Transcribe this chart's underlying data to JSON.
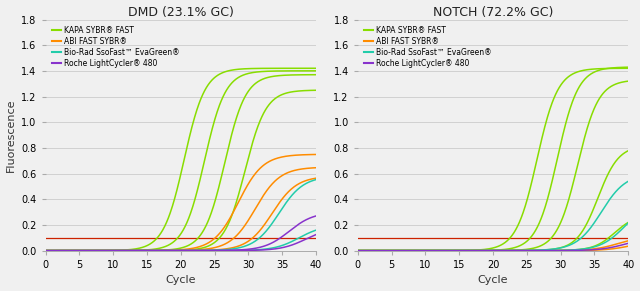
{
  "title_left": "DMD (23.1% GC)",
  "title_right": "NOTCH (72.2% GC)",
  "xlabel": "Cycle",
  "ylabel": "Fluorescence",
  "ylim": [
    0,
    1.8
  ],
  "xlim": [
    0,
    40
  ],
  "yticks": [
    0.0,
    0.2,
    0.4,
    0.6,
    0.8,
    1.0,
    1.2,
    1.4,
    1.6,
    1.8
  ],
  "xticks": [
    0,
    5,
    10,
    15,
    20,
    25,
    30,
    35,
    40
  ],
  "colors": {
    "kapa": "#88DD00",
    "abi": "#FF8C00",
    "biorad": "#22CCAA",
    "roche": "#8833CC",
    "baseline": "#CC2200",
    "black": "#111111"
  },
  "legend_labels": [
    "KAPA SYBR® FAST",
    "ABI FAST SYBR®",
    "Bio-Rad SsoFast™ EvaGreen®",
    "Roche LightCycler® 480"
  ],
  "bg_color": "#f0f0f0",
  "dmd": {
    "kapa_mids": [
      20.5,
      23.5,
      26.5,
      29.5
    ],
    "kapa_tops": [
      1.42,
      1.4,
      1.37,
      1.25
    ],
    "kapa_steep": [
      0.65,
      0.65,
      0.65,
      0.65
    ],
    "abi_mids": [
      28.5,
      31.0,
      33.5
    ],
    "abi_tops": [
      0.75,
      0.65,
      0.58
    ],
    "abi_steep": [
      0.55,
      0.55,
      0.55
    ],
    "biorad_mids": [
      34.5,
      37.5
    ],
    "biorad_tops": [
      0.58,
      0.2
    ],
    "biorad_steep": [
      0.55,
      0.55
    ],
    "roche_mids": [
      36.0,
      38.5
    ],
    "roche_tops": [
      0.3,
      0.18
    ],
    "roche_steep": [
      0.55,
      0.55
    ]
  },
  "notch": {
    "kapa_mids": [
      26.5,
      29.5,
      32.5,
      35.5,
      38.0
    ],
    "kapa_tops": [
      1.42,
      1.43,
      1.33,
      0.82,
      0.28
    ],
    "kapa_steep": [
      0.65,
      0.65,
      0.65,
      0.65,
      0.65
    ],
    "abi_mids": [
      38.5,
      40.5
    ],
    "abi_tops": [
      0.11,
      0.08
    ],
    "abi_steep": [
      0.55,
      0.55
    ],
    "biorad_mids": [
      36.0,
      39.5
    ],
    "biorad_tops": [
      0.6,
      0.38
    ],
    "biorad_steep": [
      0.55,
      0.55
    ],
    "roche_mids": [
      39.5
    ],
    "roche_tops": [
      0.1
    ],
    "roche_steep": [
      0.55
    ]
  }
}
